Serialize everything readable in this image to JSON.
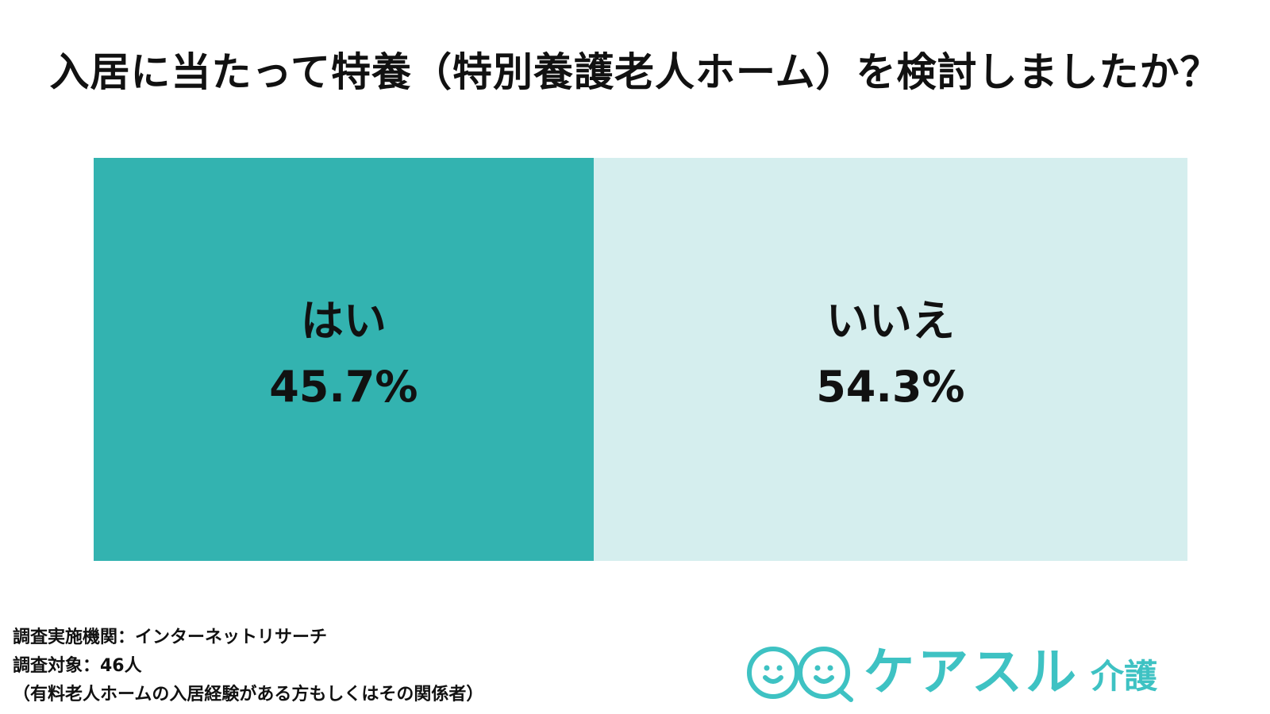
{
  "title": "入居に当たって特養（特別養護老人ホーム）を検討しましたか？",
  "colors": {
    "yes": "#33b3b0",
    "no": "#d5eeee",
    "brand": "#3ec2c3"
  },
  "chart_data": {
    "type": "bar",
    "orientation": "stacked-100-horizontal",
    "title": "入居に当たって特養（特別養護老人ホーム）を検討しましたか？",
    "categories": [
      "はい",
      "いいえ"
    ],
    "values": [
      45.7,
      54.3
    ],
    "value_labels": [
      "45.7%",
      "54.3%"
    ],
    "unit": "%",
    "grid": false,
    "legend": "none"
  },
  "footnote": {
    "line1": "調査実施機関：インターネットリサーチ",
    "line2": "調査対象：46人",
    "line3": "（有料老人ホームの入居経験がある方もしくはその関係者）"
  },
  "logo": {
    "name": "ケアスル",
    "sub": "介護",
    "icon": "smiling-faces-logo-icon"
  }
}
